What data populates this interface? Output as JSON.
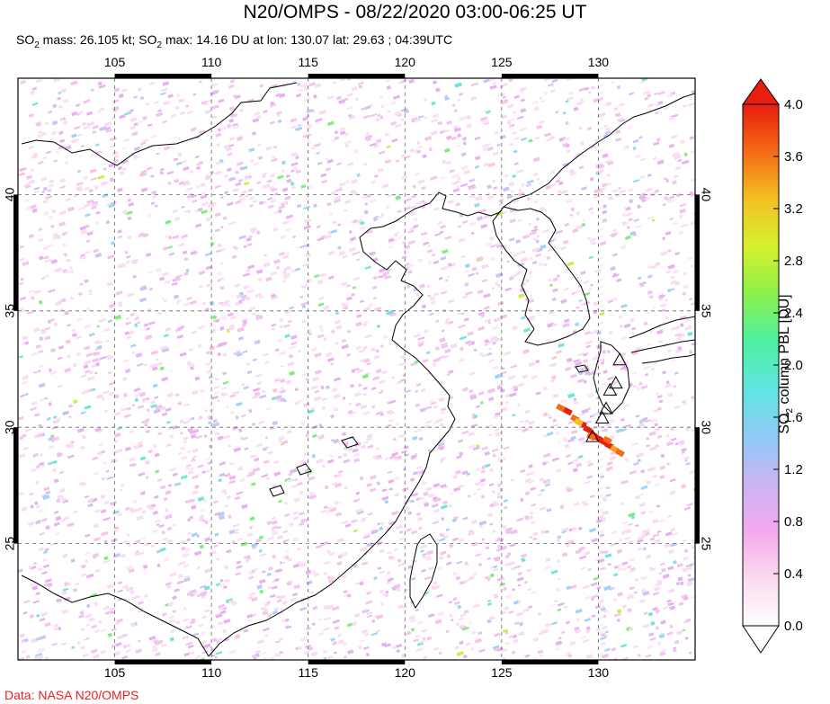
{
  "header": {
    "title": "N20/OMPS - 08/22/2020 03:00-06:25 UT",
    "subtitle_prefix": "SO",
    "subtitle_sub": "2",
    "subtitle_mid": " mass: 26.105 kt; SO",
    "subtitle_sub2": "2",
    "subtitle_rest": " max: 14.16 DU at lon: 130.07 lat: 29.63 ; 04:39UTC"
  },
  "map": {
    "lon_ticks": [
      "105",
      "110",
      "115",
      "120",
      "125",
      "130"
    ],
    "lon_values": [
      105,
      110,
      115,
      120,
      125,
      130
    ],
    "lat_ticks": [
      "25",
      "30",
      "35",
      "40"
    ],
    "lat_values": [
      25,
      30,
      35,
      40
    ],
    "lon_range": [
      100,
      135
    ],
    "lat_range": [
      20,
      45
    ],
    "plume_max": {
      "lon": 130.07,
      "lat": 29.63
    },
    "volcanoes": [
      {
        "lon": 131.1,
        "lat": 32.9
      },
      {
        "lon": 130.9,
        "lat": 31.9
      },
      {
        "lon": 130.6,
        "lat": 31.6
      },
      {
        "lon": 130.4,
        "lat": 30.8
      },
      {
        "lon": 130.2,
        "lat": 30.4
      },
      {
        "lon": 129.7,
        "lat": 29.6
      }
    ]
  },
  "colorbar": {
    "label_prefix": "SO",
    "label_sub": "2",
    "label_rest": " column PBL [DU]",
    "tick_labels": [
      "0.0",
      "0.4",
      "0.8",
      "1.2",
      "1.6",
      "2.0",
      "2.4",
      "2.8",
      "3.2",
      "3.6",
      "4.0"
    ],
    "tick_values": [
      0.0,
      0.4,
      0.8,
      1.2,
      1.6,
      2.0,
      2.4,
      2.8,
      3.2,
      3.6,
      4.0
    ],
    "colors": [
      "#ffffff",
      "#fbd9ef",
      "#f4a9ec",
      "#c9b5f4",
      "#8fcaf5",
      "#5ee6e0",
      "#4ff0a0",
      "#8cf04c",
      "#d6f02e",
      "#f4c024",
      "#f46a18",
      "#e81e0e"
    ]
  },
  "footer": {
    "credit": "Data: NASA N20/OMPS"
  }
}
